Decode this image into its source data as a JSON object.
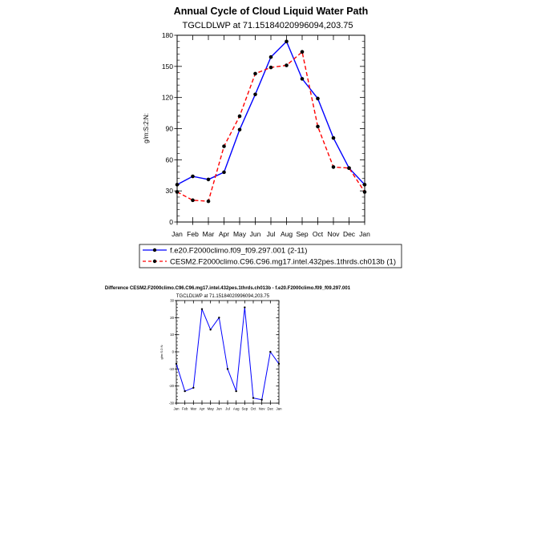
{
  "chart_data": [
    {
      "type": "line",
      "title": "Annual Cycle of Cloud Liquid Water Path",
      "subtitle": "TGCLDLWP at 71.15184020996094,203.75",
      "ylabel": "g/m:S:2:N:",
      "xlabel": "",
      "categories": [
        "Jan",
        "Feb",
        "Mar",
        "Apr",
        "May",
        "Jun",
        "Jul",
        "Aug",
        "Sep",
        "Oct",
        "Nov",
        "Dec",
        "Jan"
      ],
      "ylim": [
        0,
        180
      ],
      "yticks": [
        "0",
        "30",
        "60",
        "90",
        "120",
        "150",
        "180"
      ],
      "legend_position": "bottom",
      "series": [
        {
          "name": "f.e20.F2000climo.f09_f09.297.001 (2-11)",
          "color": "#0000ff",
          "style": "solid",
          "values": [
            36,
            44,
            41,
            48,
            89,
            123,
            159,
            174,
            138,
            119,
            81,
            52,
            36
          ]
        },
        {
          "name": "CESM2.F2000climo.C96.C96.mg17.intel.432pes.1thrds.ch013b (1)",
          "color": "#ff0000",
          "style": "dashed",
          "values": [
            29,
            21,
            20,
            73,
            102,
            143,
            149,
            151,
            164,
            92,
            53,
            52,
            29
          ]
        }
      ]
    },
    {
      "type": "line",
      "title": "Difference CESM2.F2000climo.C96.C96.mg17.intel.432pes.1thrds.ch013b - f.e20.F2000climo.f09_f09.297.001",
      "subtitle": "TGCLDLWP at 71.15184020996094,203.75",
      "ylabel": "g/m:S:2:N:",
      "categories": [
        "Jan",
        "Feb",
        "Mar",
        "Apr",
        "May",
        "Jun",
        "Jul",
        "Aug",
        "Sep",
        "Oct",
        "Nov",
        "Dec",
        "Jan"
      ],
      "ylim": [
        -30,
        30
      ],
      "yticks": [
        "-30",
        "-20",
        "-10",
        "0",
        "10",
        "20",
        "30"
      ],
      "series": [
        {
          "name": "Difference",
          "color": "#0000ff",
          "style": "solid",
          "values": [
            -7,
            -23,
            -21,
            25,
            13,
            20,
            -10,
            -23,
            26,
            -27,
            -28,
            0,
            -7
          ]
        }
      ]
    }
  ]
}
